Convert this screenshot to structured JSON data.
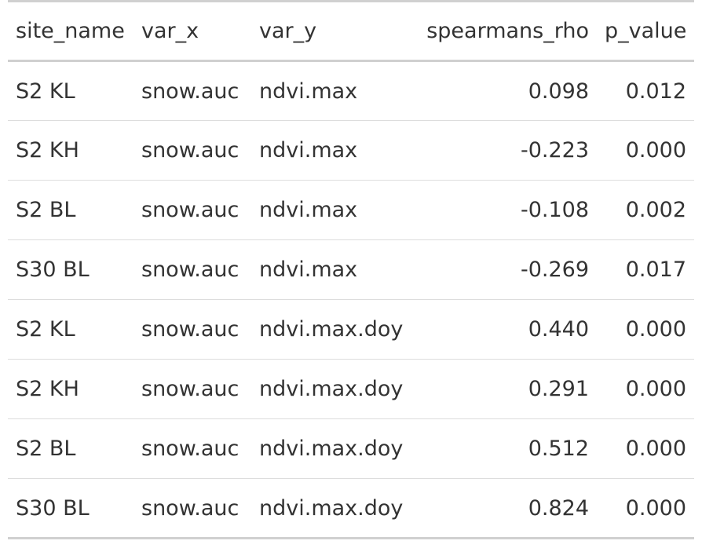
{
  "table": {
    "headers": [
      "site_name",
      "var_x",
      "var_y",
      "spearmans_rho",
      "p_value"
    ],
    "rows": [
      [
        "S2 KL",
        "snow.auc",
        "ndvi.max",
        "0.098",
        "0.012"
      ],
      [
        "S2 KH",
        "snow.auc",
        "ndvi.max",
        "-0.223",
        "0.000"
      ],
      [
        "S2 BL",
        "snow.auc",
        "ndvi.max",
        "-0.108",
        "0.002"
      ],
      [
        "S30 BL",
        "snow.auc",
        "ndvi.max",
        "-0.269",
        "0.017"
      ],
      [
        "S2 KL",
        "snow.auc",
        "ndvi.max.doy",
        "0.440",
        "0.000"
      ],
      [
        "S2 KH",
        "snow.auc",
        "ndvi.max.doy",
        "0.291",
        "0.000"
      ],
      [
        "S2 BL",
        "snow.auc",
        "ndvi.max.doy",
        "0.512",
        "0.000"
      ],
      [
        "S30 BL",
        "snow.auc",
        "ndvi.max.doy",
        "0.824",
        "0.000"
      ]
    ]
  }
}
